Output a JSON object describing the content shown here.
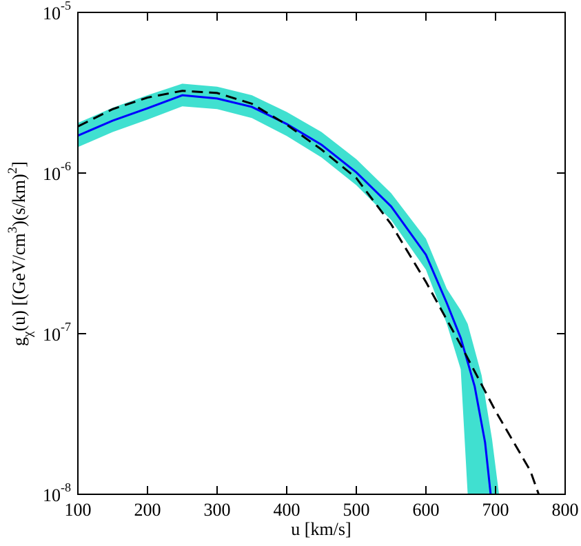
{
  "chart_data": {
    "type": "line",
    "xlabel": "u [km/s]",
    "ylabel_parts": [
      [
        "g",
        ""
      ],
      [
        "χ",
        "sub"
      ],
      [
        "(u) [(GeV/cm",
        ""
      ],
      [
        "3",
        "sup"
      ],
      [
        ")(s/km)",
        ""
      ],
      [
        "2",
        "sup"
      ],
      [
        "]",
        ""
      ]
    ],
    "xlim": [
      100,
      800
    ],
    "xticks": [
      100,
      200,
      300,
      400,
      500,
      600,
      700,
      800
    ],
    "ylim": [
      1e-08,
      1e-05
    ],
    "log_y": true,
    "yticks": [
      {
        "value": 1e-08,
        "label": "10",
        "exponent": "-8"
      },
      {
        "value": 1e-07,
        "label": "10",
        "exponent": "-7"
      },
      {
        "value": 1e-06,
        "label": "10",
        "exponent": "-6"
      },
      {
        "value": 1e-05,
        "label": "10",
        "exponent": "-5"
      }
    ],
    "band": {
      "color": "#40e0d0",
      "x": [
        100,
        150,
        200,
        250,
        300,
        350,
        400,
        450,
        500,
        550,
        600,
        630,
        650,
        660,
        680,
        695,
        705
      ],
      "upper": [
        2.05e-06,
        2.55e-06,
        3.05e-06,
        3.6e-06,
        3.45e-06,
        3.05e-06,
        2.4e-06,
        1.8e-06,
        1.22e-06,
        7.5e-07,
        3.9e-07,
        1.9e-07,
        1.4e-07,
        1.15e-07,
        5.5e-08,
        2.2e-08,
        1e-08
      ],
      "lower": [
        1.45e-06,
        1.8e-06,
        2.15e-06,
        2.6e-06,
        2.5e-06,
        2.2e-06,
        1.7e-06,
        1.25e-06,
        8.4e-07,
        5.1e-07,
        2.5e-07,
        1.15e-07,
        6e-08,
        1e-08,
        1e-08,
        1e-08,
        1e-08
      ]
    },
    "series": [
      {
        "color": "#0000ff",
        "dashed": false,
        "x": [
          100,
          150,
          200,
          250,
          300,
          350,
          400,
          450,
          500,
          550,
          600,
          630,
          650,
          670,
          685,
          693
        ],
        "values": [
          1.71e-06,
          2.12e-06,
          2.53e-06,
          3.05e-06,
          2.91e-06,
          2.58e-06,
          2.02e-06,
          1.5e-06,
          1.01e-06,
          6.2e-07,
          3.1e-07,
          1.55e-07,
          9.4e-08,
          4.7e-08,
          2.1e-08,
          1e-08
        ]
      },
      {
        "color": "#000000",
        "dashed": true,
        "x": [
          100,
          150,
          200,
          250,
          300,
          350,
          400,
          450,
          500,
          550,
          600,
          650,
          700,
          750,
          762
        ],
        "values": [
          1.95e-06,
          2.5e-06,
          2.95e-06,
          3.25e-06,
          3.15e-06,
          2.7e-06,
          2e-06,
          1.4e-06,
          9.3e-07,
          4.8e-07,
          2.1e-07,
          8.5e-08,
          3.3e-08,
          1.4e-08,
          1e-08
        ]
      }
    ]
  }
}
